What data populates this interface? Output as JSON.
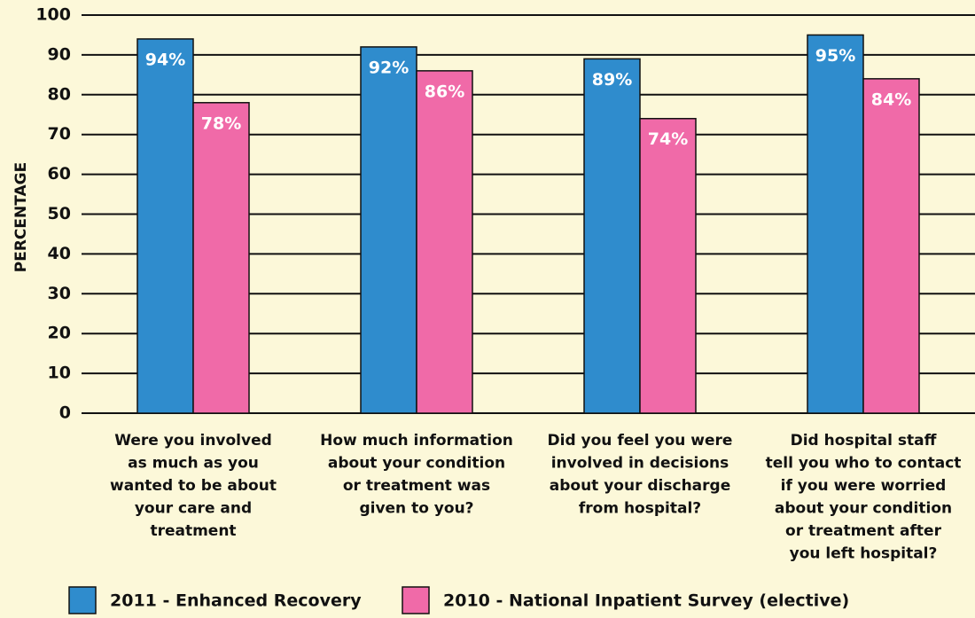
{
  "chart_data": {
    "type": "bar",
    "y_label": "PERCENTAGE",
    "categories": [
      "Were you involved\nas much as you\nwanted to be about\nyour care and\ntreatment",
      "How much information\nabout your condition\nor treatment was\ngiven to you?",
      "Did you feel you were\ninvolved in decisions\nabout your discharge\nfrom hospital?",
      "Did hospital staff\ntell you who to contact\nif you were worried\nabout your condition\nor treatment after\nyou left hospital?"
    ],
    "series": [
      {
        "name": "2011 - Enhanced Recovery",
        "color": "#2f8ccd",
        "values": [
          94,
          92,
          89,
          95
        ],
        "value_labels": [
          "94%",
          "92%",
          "89%",
          "95%"
        ]
      },
      {
        "name": "2010 - National Inpatient Survey (elective)",
        "color": "#f06aa8",
        "values": [
          78,
          86,
          74,
          84
        ],
        "value_labels": [
          "78%",
          "86%",
          "74%",
          "84%"
        ]
      }
    ],
    "ylim": [
      0,
      100
    ],
    "yticks": [
      0,
      10,
      20,
      30,
      40,
      50,
      60,
      70,
      80,
      90,
      100
    ],
    "grid": true
  }
}
